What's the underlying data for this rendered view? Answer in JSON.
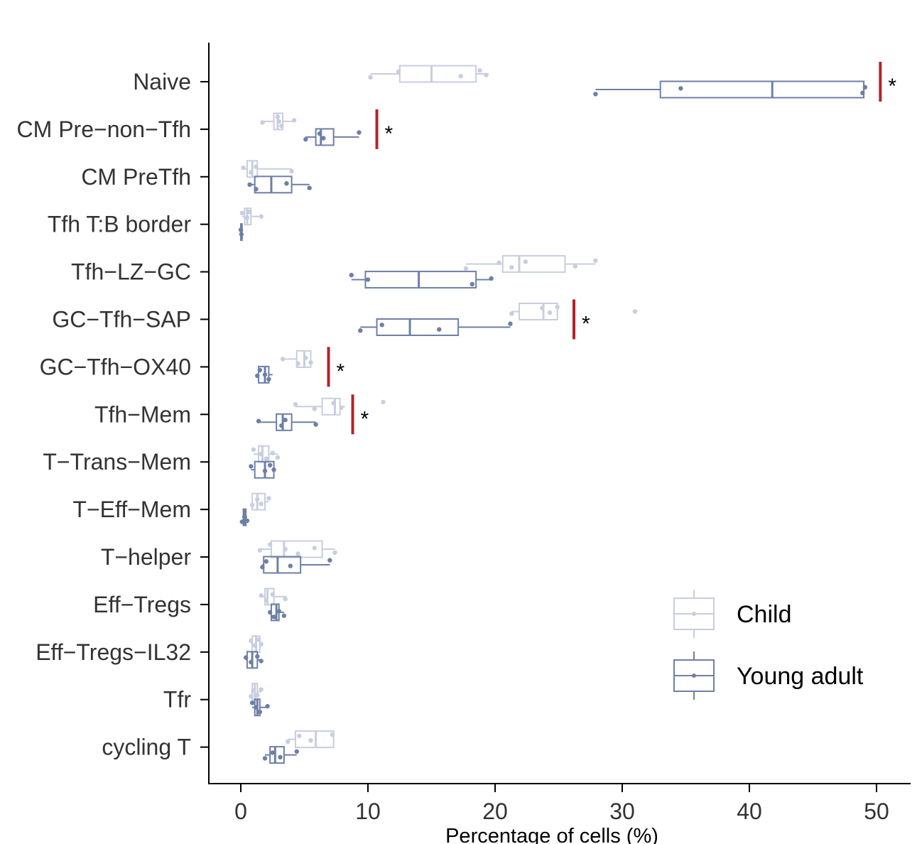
{
  "chart_data": {
    "type": "boxplot",
    "orientation": "horizontal",
    "title": "",
    "xlabel": "Percentage of cells (%)",
    "ylabel": "",
    "xlim": [
      -2.5,
      52.5
    ],
    "xticks": [
      0,
      10,
      20,
      30,
      40,
      50
    ],
    "grid": false,
    "legend": {
      "placement": "bottom-right",
      "entries": [
        {
          "name": "Child",
          "color": "#c8cedf"
        },
        {
          "name": "Young adult",
          "color": "#6e7fa6"
        }
      ]
    },
    "significance_marker": "*",
    "significance_color": "#b5222b",
    "categories": [
      {
        "label": "Naive",
        "child": {
          "box": [
            10.2,
            12.5,
            15.0,
            18.5,
            19.5
          ],
          "points": [
            10.2,
            12.4,
            17.3,
            18.8,
            19.3
          ]
        },
        "young_adult": {
          "box": [
            27.9,
            33.0,
            41.8,
            49.0,
            49.0
          ],
          "points": [
            27.9,
            34.6,
            48.9,
            49.1
          ]
        },
        "significant": true,
        "sig_x": 50.3
      },
      {
        "label": "CM Pre−non−Tfh",
        "child": {
          "box": [
            1.7,
            2.6,
            2.9,
            3.3,
            4.2
          ],
          "points": [
            1.7,
            2.9,
            3.0,
            3.2,
            4.2
          ]
        },
        "young_adult": {
          "box": [
            5.1,
            5.9,
            6.3,
            7.3,
            9.3
          ],
          "points": [
            5.1,
            6.2,
            6.5,
            9.3
          ]
        },
        "significant": true,
        "sig_x": 10.7
      },
      {
        "label": "CM PreTfh",
        "child": {
          "box": [
            0.2,
            0.5,
            0.9,
            1.3,
            4.0
          ],
          "points": [
            0.2,
            0.8,
            1.2,
            4.0
          ]
        },
        "young_adult": {
          "box": [
            0.7,
            1.1,
            2.4,
            4.0,
            5.4
          ],
          "points": [
            0.7,
            1.2,
            3.6,
            5.4
          ]
        },
        "significant": false
      },
      {
        "label": "Tfh T:B border",
        "child": {
          "box": [
            0.1,
            0.3,
            0.5,
            0.8,
            1.6
          ],
          "points": [
            0.1,
            0.5,
            0.7,
            1.6
          ]
        },
        "young_adult": {
          "box": [
            0.0,
            0.0,
            0.05,
            0.1,
            0.1
          ],
          "points": [
            0.0,
            0.05
          ]
        },
        "significant": false
      },
      {
        "label": "Tfh−LZ−GC",
        "child": {
          "box": [
            17.7,
            20.6,
            21.9,
            25.5,
            27.9
          ],
          "points": [
            17.7,
            20.3,
            21.3,
            22.4,
            26.3,
            27.9
          ]
        },
        "young_adult": {
          "box": [
            8.7,
            9.8,
            14.0,
            18.5,
            19.7
          ],
          "points": [
            8.7,
            10.0,
            18.2,
            19.7
          ]
        },
        "significant": false
      },
      {
        "label": "GC−Tfh−SAP",
        "child": {
          "box": [
            21.3,
            21.9,
            23.8,
            24.9,
            24.9
          ],
          "points": [
            21.3,
            23.7,
            24.3,
            24.9,
            31.0
          ]
        },
        "young_adult": {
          "box": [
            9.4,
            10.7,
            13.3,
            17.1,
            21.2
          ],
          "points": [
            9.4,
            11.1,
            15.6,
            21.2
          ]
        },
        "significant": true,
        "sig_x": 26.2
      },
      {
        "label": "GC−Tfh−OX40",
        "child": {
          "box": [
            3.3,
            4.4,
            5.0,
            5.5,
            5.5
          ],
          "points": [
            3.3,
            4.5,
            5.1,
            5.5
          ]
        },
        "young_adult": {
          "box": [
            1.3,
            1.4,
            1.9,
            2.2,
            2.5
          ],
          "points": [
            1.3,
            1.5,
            1.9,
            2.2
          ]
        },
        "significant": true,
        "sig_x": 6.9
      },
      {
        "label": "Tfh−Mem",
        "child": {
          "box": [
            4.3,
            6.4,
            7.4,
            7.8,
            8.2
          ],
          "points": [
            4.3,
            5.8,
            7.3,
            7.9,
            11.2
          ]
        },
        "young_adult": {
          "box": [
            1.4,
            2.8,
            3.3,
            4.0,
            5.9
          ],
          "points": [
            1.4,
            3.2,
            3.5,
            5.9
          ]
        },
        "significant": true,
        "sig_x": 8.8
      },
      {
        "label": "T−Trans−Mem",
        "child": {
          "box": [
            1.0,
            1.4,
            1.7,
            2.2,
            2.9
          ],
          "points": [
            1.0,
            1.6,
            2.0,
            2.5,
            2.9
          ]
        },
        "young_adult": {
          "box": [
            0.8,
            1.1,
            1.9,
            2.6,
            2.6
          ],
          "points": [
            0.8,
            1.9,
            2.3,
            2.6
          ]
        },
        "significant": false
      },
      {
        "label": "T−Eff−Mem",
        "child": {
          "box": [
            0.9,
            0.9,
            1.3,
            1.9,
            2.2
          ],
          "points": [
            0.9,
            1.3,
            1.6,
            2.2
          ]
        },
        "young_adult": {
          "box": [
            0.1,
            0.2,
            0.3,
            0.4,
            0.5
          ],
          "points": [
            0.1,
            0.3,
            0.5
          ]
        },
        "significant": false
      },
      {
        "label": "T−helper",
        "child": {
          "box": [
            1.5,
            2.4,
            3.4,
            6.4,
            7.4
          ],
          "points": [
            1.5,
            2.3,
            3.5,
            4.5,
            5.8,
            7.4
          ]
        },
        "young_adult": {
          "box": [
            1.7,
            1.8,
            2.9,
            4.7,
            7.0
          ],
          "points": [
            1.7,
            2.0,
            3.9,
            7.0
          ]
        },
        "significant": false
      },
      {
        "label": "Eff−Tregs",
        "child": {
          "box": [
            1.6,
            1.9,
            2.1,
            2.6,
            3.6
          ],
          "points": [
            1.6,
            2.0,
            2.5,
            3.5
          ]
        },
        "young_adult": {
          "box": [
            2.3,
            2.4,
            2.8,
            3.0,
            3.4
          ],
          "points": [
            2.3,
            2.6,
            3.0,
            3.4
          ]
        },
        "significant": false
      },
      {
        "label": "Eff−Tregs−IL32",
        "child": {
          "box": [
            0.8,
            0.9,
            1.2,
            1.5,
            1.7
          ],
          "points": [
            0.8,
            1.1,
            1.4,
            1.6
          ]
        },
        "young_adult": {
          "box": [
            0.4,
            0.5,
            0.9,
            1.3,
            1.6
          ],
          "points": [
            0.4,
            0.8,
            1.3,
            1.6
          ]
        },
        "significant": false
      },
      {
        "label": "Tfr",
        "child": {
          "box": [
            0.8,
            0.9,
            1.1,
            1.3,
            1.6
          ],
          "points": [
            0.8,
            1.0,
            1.3,
            1.6
          ]
        },
        "young_adult": {
          "box": [
            0.9,
            1.1,
            1.3,
            1.5,
            2.1
          ],
          "points": [
            0.9,
            1.2,
            1.5,
            2.1
          ]
        },
        "significant": false
      },
      {
        "label": "cycling T",
        "child": {
          "box": [
            3.7,
            4.3,
            5.9,
            7.3,
            7.3
          ],
          "points": [
            3.7,
            4.6,
            5.5,
            7.2
          ]
        },
        "young_adult": {
          "box": [
            1.9,
            2.3,
            2.7,
            3.4,
            4.4
          ],
          "points": [
            1.9,
            2.5,
            3.1,
            4.4
          ]
        },
        "significant": false
      }
    ]
  }
}
